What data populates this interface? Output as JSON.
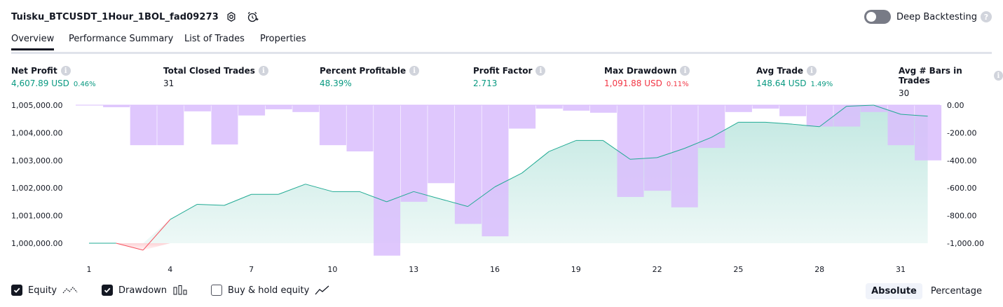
{
  "header": {
    "title": "Tuisku_BTCUSDT_1Hour_1BOL_fad09273",
    "deep_backtesting_label": "Deep Backtesting",
    "help_glyph": "?"
  },
  "tabs": [
    {
      "label": "Overview",
      "active": true
    },
    {
      "label": "Performance Summary",
      "active": false
    },
    {
      "label": "List of Trades",
      "active": false
    },
    {
      "label": "Properties",
      "active": false
    }
  ],
  "stats": [
    {
      "label": "Net Profit",
      "value": "4,607.89 USD",
      "sub": "0.46%",
      "color": "#089981"
    },
    {
      "label": "Total Closed Trades",
      "value": "31",
      "sub": "",
      "color": "#131722"
    },
    {
      "label": "Percent Profitable",
      "value": "48.39%",
      "sub": "",
      "color": "#089981"
    },
    {
      "label": "Profit Factor",
      "value": "2.713",
      "sub": "",
      "color": "#089981"
    },
    {
      "label": "Max Drawdown",
      "value": "1,091.88 USD",
      "sub": "0.11%",
      "color": "#f23645"
    },
    {
      "label": "Avg Trade",
      "value": "148.64 USD",
      "sub": "1.49%",
      "color": "#089981"
    },
    {
      "label": "Avg # Bars in Trades",
      "value": "30",
      "sub": "",
      "color": "#131722"
    }
  ],
  "info_glyph": "i",
  "chart_data": {
    "type": "area",
    "equity": {
      "x": [
        1,
        2,
        3,
        4,
        5,
        6,
        7,
        8,
        9,
        10,
        11,
        12,
        13,
        14,
        15,
        16,
        17,
        18,
        19,
        20,
        21,
        22,
        23,
        24,
        25,
        26,
        27,
        28,
        29,
        30,
        31,
        32
      ],
      "values": [
        1000000,
        1000000,
        999750,
        1000860,
        1001410,
        1001370,
        1001770,
        1001770,
        1002140,
        1001870,
        1001870,
        1001500,
        1001870,
        1001600,
        1001330,
        1002040,
        1002540,
        1003320,
        1003720,
        1003720,
        1003040,
        1003100,
        1003430,
        1003830,
        1004380,
        1004380,
        1004310,
        1004220,
        1004960,
        1005000,
        1004670,
        1004600
      ]
    },
    "drawdown": {
      "x": [
        1,
        2,
        3,
        4,
        5,
        6,
        7,
        8,
        9,
        10,
        11,
        12,
        13,
        14,
        15,
        16,
        17,
        18,
        19,
        20,
        21,
        22,
        23,
        24,
        25,
        26,
        27,
        28,
        29,
        30,
        31,
        32
      ],
      "values": [
        0,
        -15,
        -290,
        -290,
        -45,
        -285,
        -75,
        -30,
        -50,
        -290,
        -335,
        -1090,
        -700,
        -565,
        -860,
        -950,
        -170,
        -25,
        -40,
        -55,
        -665,
        -620,
        -740,
        -310,
        -50,
        -25,
        -80,
        -155,
        -155,
        -50,
        -290,
        -400
      ]
    },
    "x_ticks": [
      1,
      4,
      7,
      10,
      13,
      16,
      19,
      22,
      25,
      28,
      31
    ],
    "left_ticks": [
      "1,005,000.00",
      "1,004,000.00",
      "1,003,000.00",
      "1,002,000.00",
      "1,001,000.00",
      "1,000,000.00"
    ],
    "right_ticks": [
      "0.00",
      "-200.00",
      "-400.00",
      "-600.00",
      "-800.00",
      "-1,000.00"
    ],
    "left_range": [
      1000000,
      1005000
    ],
    "right_range": [
      -1000,
      0
    ],
    "colors": {
      "equity_line": "#22ab94",
      "equity_below_line": "#f7525f",
      "drawdown_bar": "#d9bdfd",
      "area": "#22ab94"
    }
  },
  "legend": [
    {
      "label": "Equity",
      "checked": true
    },
    {
      "label": "Drawdown",
      "checked": true
    },
    {
      "label": "Buy & hold equity",
      "checked": false
    }
  ],
  "mode": {
    "absolute": "Absolute",
    "percentage": "Percentage",
    "selected": "Absolute"
  }
}
